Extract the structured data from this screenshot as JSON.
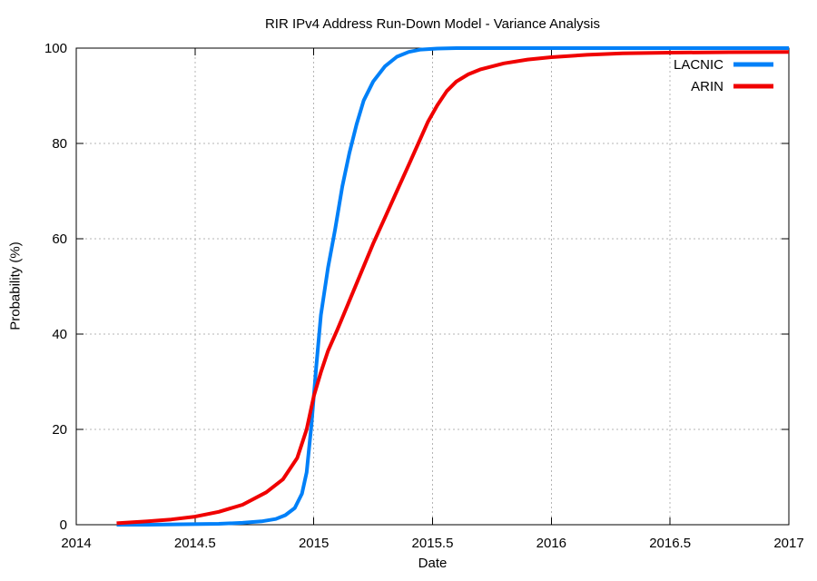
{
  "page": {
    "background": "#ffffff"
  },
  "chart_data": {
    "type": "line",
    "title": "RIR IPv4 Address Run-Down Model - Variance Analysis",
    "xlabel": "Date",
    "ylabel": "Probability (%)",
    "xlim": [
      2014,
      2017
    ],
    "ylim": [
      0,
      100
    ],
    "grid": true,
    "legend_position": "top-right",
    "x_ticks": [
      {
        "v": 2014,
        "label": "2014"
      },
      {
        "v": 2014.5,
        "label": "2014.5"
      },
      {
        "v": 2015,
        "label": "2015"
      },
      {
        "v": 2015.5,
        "label": "2015.5"
      },
      {
        "v": 2016,
        "label": "2016"
      },
      {
        "v": 2016.5,
        "label": "2016.5"
      },
      {
        "v": 2017,
        "label": "2017"
      }
    ],
    "y_ticks": [
      {
        "v": 0,
        "label": "0"
      },
      {
        "v": 20,
        "label": "20"
      },
      {
        "v": 40,
        "label": "40"
      },
      {
        "v": 60,
        "label": "60"
      },
      {
        "v": 80,
        "label": "80"
      },
      {
        "v": 100,
        "label": "100"
      }
    ],
    "colors": {
      "grid": "#b4b4b4",
      "border": "#000000",
      "text": "#000000",
      "lacnic": "#0080f8",
      "arin": "#f00000"
    },
    "series": [
      {
        "name": "LACNIC",
        "color": "#0080f8",
        "points": [
          [
            2014.17,
            0.0
          ],
          [
            2014.3,
            0.0
          ],
          [
            2014.45,
            0.1
          ],
          [
            2014.6,
            0.2
          ],
          [
            2014.7,
            0.4
          ],
          [
            2014.78,
            0.7
          ],
          [
            2014.84,
            1.2
          ],
          [
            2014.88,
            2.0
          ],
          [
            2014.92,
            3.5
          ],
          [
            2014.95,
            6.5
          ],
          [
            2014.97,
            11.0
          ],
          [
            2014.99,
            21.0
          ],
          [
            2015.01,
            33.0
          ],
          [
            2015.03,
            44.0
          ],
          [
            2015.06,
            54.0
          ],
          [
            2015.09,
            62.0
          ],
          [
            2015.12,
            71.0
          ],
          [
            2015.15,
            78.0
          ],
          [
            2015.18,
            84.0
          ],
          [
            2015.21,
            89.0
          ],
          [
            2015.25,
            93.0
          ],
          [
            2015.3,
            96.2
          ],
          [
            2015.35,
            98.2
          ],
          [
            2015.4,
            99.2
          ],
          [
            2015.45,
            99.7
          ],
          [
            2015.52,
            99.9
          ],
          [
            2015.6,
            100.0
          ],
          [
            2015.8,
            100.0
          ],
          [
            2016.0,
            100.0
          ],
          [
            2016.33,
            100.0
          ],
          [
            2016.66,
            100.0
          ],
          [
            2017.0,
            100.0
          ]
        ]
      },
      {
        "name": "ARIN",
        "color": "#f00000",
        "points": [
          [
            2014.17,
            0.3
          ],
          [
            2014.3,
            0.7
          ],
          [
            2014.4,
            1.1
          ],
          [
            2014.5,
            1.7
          ],
          [
            2014.6,
            2.7
          ],
          [
            2014.7,
            4.2
          ],
          [
            2014.8,
            6.8
          ],
          [
            2014.87,
            9.5
          ],
          [
            2014.93,
            14.0
          ],
          [
            2014.97,
            20.0
          ],
          [
            2015.0,
            27.0
          ],
          [
            2015.03,
            32.0
          ],
          [
            2015.06,
            36.5
          ],
          [
            2015.1,
            41.0
          ],
          [
            2015.15,
            47.0
          ],
          [
            2015.2,
            53.0
          ],
          [
            2015.25,
            59.0
          ],
          [
            2015.3,
            64.5
          ],
          [
            2015.35,
            70.0
          ],
          [
            2015.4,
            75.5
          ],
          [
            2015.44,
            80.0
          ],
          [
            2015.48,
            84.5
          ],
          [
            2015.52,
            88.0
          ],
          [
            2015.56,
            91.0
          ],
          [
            2015.6,
            93.0
          ],
          [
            2015.65,
            94.5
          ],
          [
            2015.7,
            95.5
          ],
          [
            2015.8,
            96.8
          ],
          [
            2015.9,
            97.6
          ],
          [
            2016.0,
            98.1
          ],
          [
            2016.15,
            98.6
          ],
          [
            2016.3,
            98.9
          ],
          [
            2016.5,
            99.05
          ],
          [
            2016.75,
            99.15
          ],
          [
            2017.0,
            99.2
          ]
        ]
      }
    ]
  }
}
